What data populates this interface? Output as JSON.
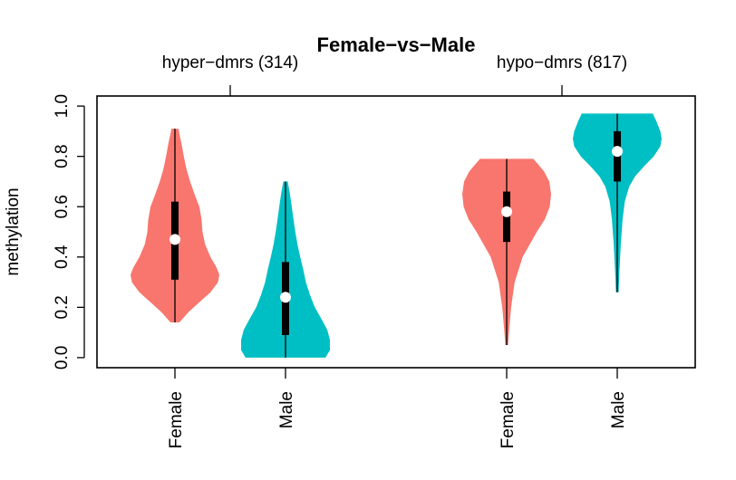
{
  "chart_data": {
    "type": "violin",
    "title": "Female−vs−Male",
    "ylabel": "methylation",
    "xlabel": "",
    "ylim": [
      -0.04,
      1.04
    ],
    "yticks": [
      0.0,
      0.2,
      0.4,
      0.6,
      0.8,
      1.0
    ],
    "ytick_labels": [
      "0.0",
      "0.2",
      "0.4",
      "0.6",
      "0.8",
      "1.0"
    ],
    "grid": false,
    "colors": {
      "Female": "#F8766D",
      "Male": "#00BFC4"
    },
    "groups": [
      {
        "label": "hyper−dmrs (314)",
        "violins": [
          {
            "category": "Female",
            "min": 0.14,
            "q1": 0.31,
            "median": 0.47,
            "q3": 0.62,
            "max": 0.91,
            "profile": [
              [
                0.14,
                0.1
              ],
              [
                0.18,
                0.3
              ],
              [
                0.22,
                0.55
              ],
              [
                0.26,
                0.8
              ],
              [
                0.3,
                0.97
              ],
              [
                0.33,
                1.0
              ],
              [
                0.36,
                0.93
              ],
              [
                0.4,
                0.8
              ],
              [
                0.45,
                0.68
              ],
              [
                0.5,
                0.62
              ],
              [
                0.55,
                0.6
              ],
              [
                0.6,
                0.55
              ],
              [
                0.65,
                0.44
              ],
              [
                0.7,
                0.34
              ],
              [
                0.75,
                0.26
              ],
              [
                0.8,
                0.2
              ],
              [
                0.85,
                0.15
              ],
              [
                0.89,
                0.1
              ],
              [
                0.91,
                0.08
              ]
            ]
          },
          {
            "category": "Male",
            "min": 0.0,
            "q1": 0.09,
            "median": 0.24,
            "q3": 0.38,
            "max": 0.7,
            "profile": [
              [
                0.0,
                0.9
              ],
              [
                0.03,
                1.0
              ],
              [
                0.07,
                1.0
              ],
              [
                0.11,
                0.94
              ],
              [
                0.15,
                0.82
              ],
              [
                0.2,
                0.66
              ],
              [
                0.25,
                0.55
              ],
              [
                0.3,
                0.46
              ],
              [
                0.35,
                0.4
              ],
              [
                0.4,
                0.33
              ],
              [
                0.45,
                0.27
              ],
              [
                0.5,
                0.22
              ],
              [
                0.55,
                0.18
              ],
              [
                0.6,
                0.14
              ],
              [
                0.65,
                0.1
              ],
              [
                0.7,
                0.05
              ]
            ]
          }
        ]
      },
      {
        "label": "hypo−dmrs (817)",
        "violins": [
          {
            "category": "Female",
            "min": 0.05,
            "q1": 0.46,
            "median": 0.58,
            "q3": 0.66,
            "max": 0.79,
            "profile": [
              [
                0.05,
                0.03
              ],
              [
                0.1,
                0.05
              ],
              [
                0.2,
                0.1
              ],
              [
                0.3,
                0.18
              ],
              [
                0.4,
                0.36
              ],
              [
                0.5,
                0.68
              ],
              [
                0.55,
                0.86
              ],
              [
                0.6,
                0.97
              ],
              [
                0.65,
                1.0
              ],
              [
                0.7,
                0.96
              ],
              [
                0.74,
                0.84
              ],
              [
                0.77,
                0.7
              ],
              [
                0.79,
                0.6
              ]
            ]
          },
          {
            "category": "Male",
            "min": 0.26,
            "q1": 0.7,
            "median": 0.82,
            "q3": 0.9,
            "max": 0.97,
            "profile": [
              [
                0.26,
                0.03
              ],
              [
                0.35,
                0.05
              ],
              [
                0.45,
                0.08
              ],
              [
                0.55,
                0.12
              ],
              [
                0.62,
                0.17
              ],
              [
                0.68,
                0.27
              ],
              [
                0.72,
                0.4
              ],
              [
                0.76,
                0.6
              ],
              [
                0.8,
                0.82
              ],
              [
                0.84,
                0.97
              ],
              [
                0.87,
                1.0
              ],
              [
                0.9,
                0.97
              ],
              [
                0.94,
                0.88
              ],
              [
                0.97,
                0.8
              ]
            ]
          }
        ]
      }
    ]
  }
}
